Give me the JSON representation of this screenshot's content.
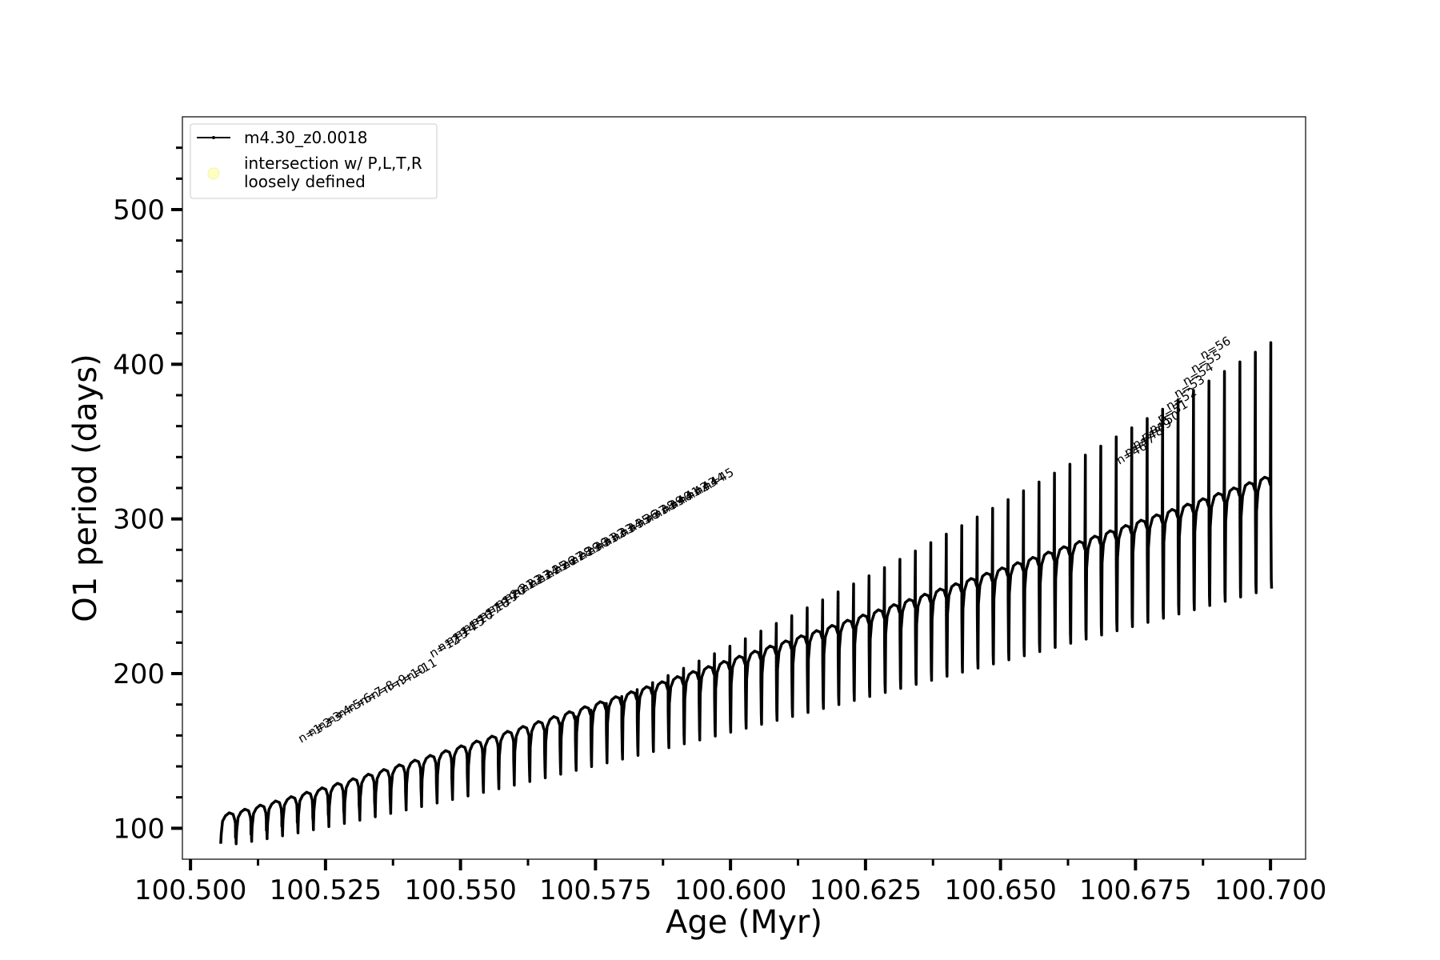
{
  "chart_data": {
    "type": "line",
    "xlabel": "Age (Myr)",
    "ylabel": "O1 period (days)",
    "xlim": [
      100.4985,
      100.7065
    ],
    "ylim": [
      80,
      560
    ],
    "x_ticks": [
      "100.500",
      "100.525",
      "100.550",
      "100.575",
      "100.600",
      "100.625",
      "100.650",
      "100.675",
      "100.700"
    ],
    "x_tick_values": [
      100.5,
      100.525,
      100.55,
      100.575,
      100.6,
      100.625,
      100.65,
      100.675,
      100.7
    ],
    "y_ticks": [
      "100",
      "200",
      "300",
      "400",
      "500"
    ],
    "y_tick_values": [
      100,
      200,
      300,
      400,
      500
    ],
    "grid": false,
    "legend_position": "top-left",
    "legend": [
      {
        "label": "m4.30_z0.0018",
        "marker": "line-dot",
        "color": "#000000"
      },
      {
        "label_lines": [
          "intersection w/ P,L,T,R",
          "loosely defined"
        ],
        "marker": "circle",
        "color": "#ffffc0"
      }
    ],
    "series": [
      {
        "name": "m4.30_z0.0018",
        "color": "#000000",
        "x_start": 100.5056,
        "x_end": 100.7002,
        "cycles": 68,
        "period_low": [
          98,
          307
        ],
        "period_dip_min": [
          90,
          255
        ],
        "spike_peak_range": [
          103,
          414
        ]
      }
    ],
    "annotations": [
      "n=1",
      "n=2",
      "n=3",
      "n=4",
      "n=5",
      "n=6",
      "n=7",
      "n=8",
      "n=9",
      "n=10",
      "n=11",
      "n=12",
      "n=13",
      "n=14",
      "n=15",
      "n=16",
      "n=17",
      "n=18",
      "n=19",
      "n=20",
      "n=21",
      "n=22",
      "n=23",
      "n=24",
      "n=25",
      "n=26",
      "n=27",
      "n=28",
      "n=29",
      "n=30",
      "n=31",
      "n=32",
      "n=33",
      "n=34",
      "n=35",
      "n=36",
      "n=37",
      "n=38",
      "n=39",
      "n=40",
      "n=41",
      "n=42",
      "n=43",
      "n=44",
      "n=45",
      "n=46",
      "n=47",
      "n=48",
      "n=49",
      "n=50",
      "n=51",
      "n=52",
      "n=53",
      "n=54",
      "n=55",
      "n=56"
    ],
    "annotation_x": [
      100.5205,
      100.5223,
      100.5241,
      100.5259,
      100.5278,
      100.5297,
      100.5318,
      100.5339,
      100.5362,
      100.5385,
      100.5405,
      100.5448,
      100.5463,
      100.5478,
      100.5494,
      100.5509,
      100.5524,
      100.554,
      100.5555,
      100.557,
      100.5586,
      100.5601,
      100.5617,
      100.5632,
      100.5647,
      100.5663,
      100.5678,
      100.5693,
      100.5709,
      100.5724,
      100.574,
      100.5755,
      100.577,
      100.5786,
      100.5801,
      100.5816,
      100.5832,
      100.5847,
      100.5863,
      100.5878,
      100.5893,
      100.5909,
      100.5924,
      100.5939,
      100.5955,
      100.672,
      100.6735,
      100.675,
      100.6766,
      100.6781,
      100.6796,
      100.6812,
      100.6827,
      100.6843,
      100.6858,
      100.6875
    ],
    "annotation_y": [
      155,
      159,
      163,
      167,
      171,
      175,
      179,
      183,
      187,
      191,
      195,
      210,
      214,
      218,
      222,
      226,
      230,
      234,
      238,
      242,
      246,
      249,
      252,
      255,
      258,
      261,
      264,
      267,
      270,
      273,
      276,
      279,
      282,
      285,
      288,
      291,
      294,
      297,
      300,
      303,
      306,
      309,
      312,
      315,
      318,
      335,
      340,
      345,
      350,
      355,
      362,
      370,
      378,
      386,
      394,
      403
    ]
  }
}
